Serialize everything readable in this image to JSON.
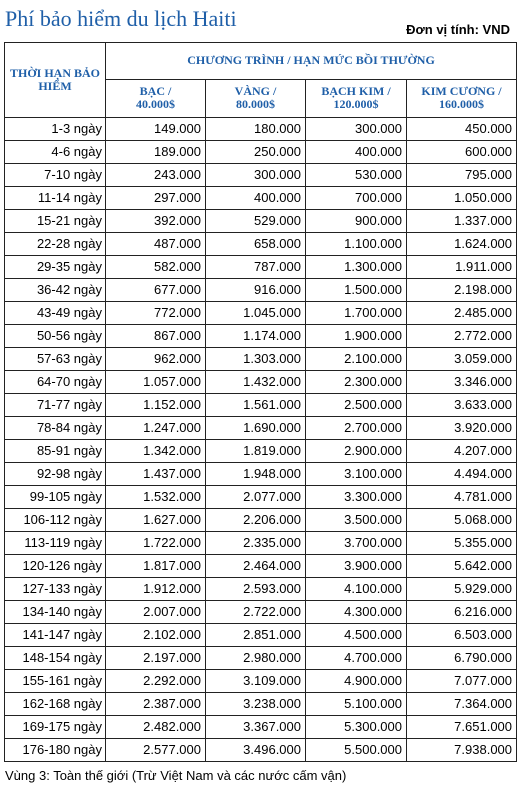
{
  "title": "Phí bảo hiểm du lịch Haiti",
  "unit": "Đơn vị tính: VND",
  "table": {
    "duration_header": "THỜI HẠN BẢO HIỂM",
    "program_header": "CHƯƠNG TRÌNH / HẠN MỨC BỒI THƯỜNG",
    "tiers": [
      {
        "name": "BẠC /",
        "limit": "40.000$"
      },
      {
        "name": "VÀNG /",
        "limit": "80.000$"
      },
      {
        "name": "BẠCH KIM /",
        "limit": "120.000$"
      },
      {
        "name": "KIM CƯƠNG /",
        "limit": "160.000$"
      }
    ],
    "rows": [
      [
        "1-3 ngày",
        "149.000",
        "180.000",
        "300.000",
        "450.000"
      ],
      [
        "4-6 ngày",
        "189.000",
        "250.000",
        "400.000",
        "600.000"
      ],
      [
        "7-10 ngày",
        "243.000",
        "300.000",
        "530.000",
        "795.000"
      ],
      [
        "11-14 ngày",
        "297.000",
        "400.000",
        "700.000",
        "1.050.000"
      ],
      [
        "15-21 ngày",
        "392.000",
        "529.000",
        "900.000",
        "1.337.000"
      ],
      [
        "22-28 ngày",
        "487.000",
        "658.000",
        "1.100.000",
        "1.624.000"
      ],
      [
        "29-35 ngày",
        "582.000",
        "787.000",
        "1.300.000",
        "1.911.000"
      ],
      [
        "36-42 ngày",
        "677.000",
        "916.000",
        "1.500.000",
        "2.198.000"
      ],
      [
        "43-49 ngày",
        "772.000",
        "1.045.000",
        "1.700.000",
        "2.485.000"
      ],
      [
        "50-56 ngày",
        "867.000",
        "1.174.000",
        "1.900.000",
        "2.772.000"
      ],
      [
        "57-63 ngày",
        "962.000",
        "1.303.000",
        "2.100.000",
        "3.059.000"
      ],
      [
        "64-70 ngày",
        "1.057.000",
        "1.432.000",
        "2.300.000",
        "3.346.000"
      ],
      [
        "71-77 ngày",
        "1.152.000",
        "1.561.000",
        "2.500.000",
        "3.633.000"
      ],
      [
        "78-84 ngày",
        "1.247.000",
        "1.690.000",
        "2.700.000",
        "3.920.000"
      ],
      [
        "85-91 ngày",
        "1.342.000",
        "1.819.000",
        "2.900.000",
        "4.207.000"
      ],
      [
        "92-98 ngày",
        "1.437.000",
        "1.948.000",
        "3.100.000",
        "4.494.000"
      ],
      [
        "99-105 ngày",
        "1.532.000",
        "2.077.000",
        "3.300.000",
        "4.781.000"
      ],
      [
        "106-112 ngày",
        "1.627.000",
        "2.206.000",
        "3.500.000",
        "5.068.000"
      ],
      [
        "113-119 ngày",
        "1.722.000",
        "2.335.000",
        "3.700.000",
        "5.355.000"
      ],
      [
        "120-126 ngày",
        "1.817.000",
        "2.464.000",
        "3.900.000",
        "5.642.000"
      ],
      [
        "127-133 ngày",
        "1.912.000",
        "2.593.000",
        "4.100.000",
        "5.929.000"
      ],
      [
        "134-140 ngày",
        "2.007.000",
        "2.722.000",
        "4.300.000",
        "6.216.000"
      ],
      [
        "141-147 ngày",
        "2.102.000",
        "2.851.000",
        "4.500.000",
        "6.503.000"
      ],
      [
        "148-154 ngày",
        "2.197.000",
        "2.980.000",
        "4.700.000",
        "6.790.000"
      ],
      [
        "155-161 ngày",
        "2.292.000",
        "3.109.000",
        "4.900.000",
        "7.077.000"
      ],
      [
        "162-168 ngày",
        "2.387.000",
        "3.238.000",
        "5.100.000",
        "7.364.000"
      ],
      [
        "169-175 ngày",
        "2.482.000",
        "3.367.000",
        "5.300.000",
        "7.651.000"
      ],
      [
        "176-180 ngày",
        "2.577.000",
        "3.496.000",
        "5.500.000",
        "7.938.000"
      ]
    ]
  },
  "footnote": "Vùng 3: Toàn thế giới (Trừ Việt Nam và các nước cấm vận)",
  "colors": {
    "heading": "#1f5fa8",
    "border": "#222222"
  }
}
